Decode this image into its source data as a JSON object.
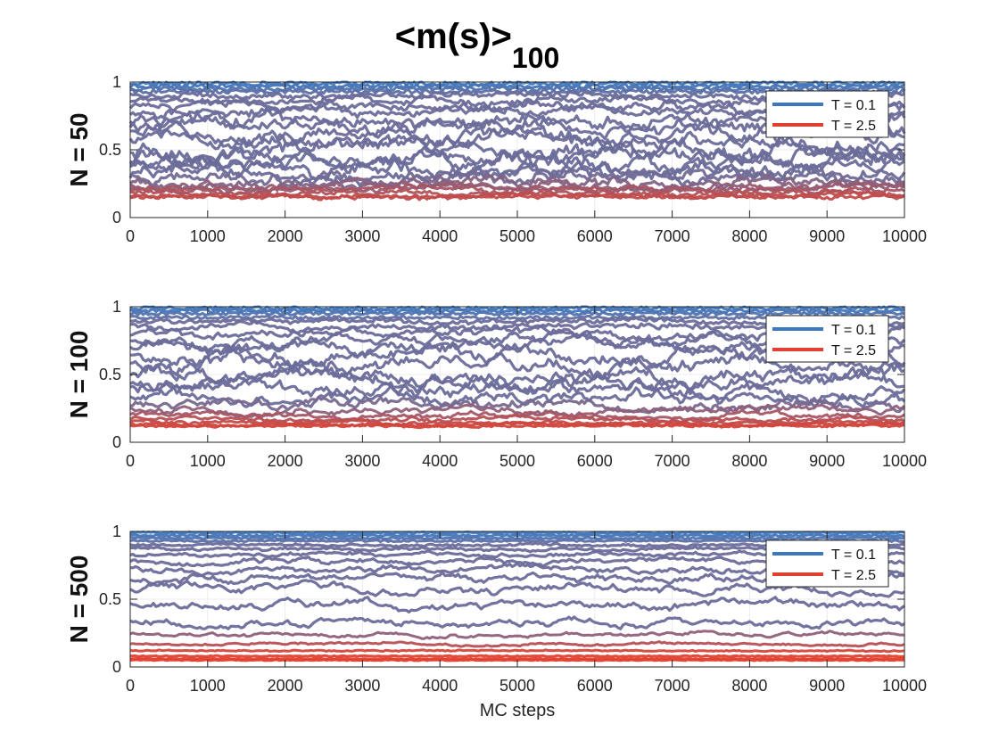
{
  "figure": {
    "title_main": "<m(s)>",
    "title_sub": "100",
    "xlabel": "MC steps"
  },
  "colors": {
    "low_T": "#3B78C0",
    "high_T": "#E0402F",
    "mid": "#6C6C9A",
    "axis": "#262626",
    "grid": "#EBEBEB"
  },
  "chart_data": [
    {
      "type": "line",
      "ylabel": "N = 50",
      "xlim": [
        0,
        10000
      ],
      "ylim": [
        0,
        1
      ],
      "xticks": [
        "0",
        "1000",
        "2000",
        "3000",
        "4000",
        "5000",
        "6000",
        "7000",
        "8000",
        "9000",
        "10000"
      ],
      "yticks": [
        "0",
        "0.5",
        "1"
      ],
      "grid": true,
      "legend": {
        "placement": "top-right",
        "entries": [
          "T = 0.1",
          "T = 2.5"
        ]
      },
      "series_levels": [
        0.99,
        0.97,
        0.95,
        0.93,
        0.9,
        0.86,
        0.82,
        0.78,
        0.73,
        0.68,
        0.62,
        0.56,
        0.5,
        0.45,
        0.4,
        0.36,
        0.32,
        0.29,
        0.26,
        0.24,
        0.22,
        0.2,
        0.18,
        0.16,
        0.15
      ],
      "noise_base": 0.03,
      "wander_scale": 0.22
    },
    {
      "type": "line",
      "ylabel": "N = 100",
      "xlim": [
        0,
        10000
      ],
      "ylim": [
        0,
        1
      ],
      "xticks": [
        "0",
        "1000",
        "2000",
        "3000",
        "4000",
        "5000",
        "6000",
        "7000",
        "8000",
        "9000",
        "10000"
      ],
      "yticks": [
        "0",
        "0.5",
        "1"
      ],
      "grid": true,
      "legend": {
        "placement": "top-right",
        "entries": [
          "T = 0.1",
          "T = 2.5"
        ]
      },
      "series_levels": [
        0.99,
        0.97,
        0.95,
        0.92,
        0.89,
        0.85,
        0.8,
        0.75,
        0.7,
        0.64,
        0.57,
        0.5,
        0.44,
        0.38,
        0.33,
        0.28,
        0.24,
        0.2,
        0.17,
        0.15,
        0.13,
        0.12
      ],
      "noise_base": 0.022,
      "wander_scale": 0.2
    },
    {
      "type": "line",
      "ylabel": "N = 500",
      "xlim": [
        0,
        10000
      ],
      "ylim": [
        0,
        1
      ],
      "xticks": [
        "0",
        "1000",
        "2000",
        "3000",
        "4000",
        "5000",
        "6000",
        "7000",
        "8000",
        "9000",
        "10000"
      ],
      "yticks": [
        "0",
        "0.5",
        "1"
      ],
      "grid": true,
      "legend": {
        "placement": "top-right",
        "entries": [
          "T = 0.1",
          "T = 2.5"
        ]
      },
      "series_levels": [
        0.99,
        0.97,
        0.95,
        0.93,
        0.9,
        0.87,
        0.83,
        0.78,
        0.72,
        0.65,
        0.57,
        0.45,
        0.33,
        0.24,
        0.17,
        0.12,
        0.08,
        0.06,
        0.05
      ],
      "noise_base": 0.012,
      "wander_scale": 0.12
    }
  ]
}
